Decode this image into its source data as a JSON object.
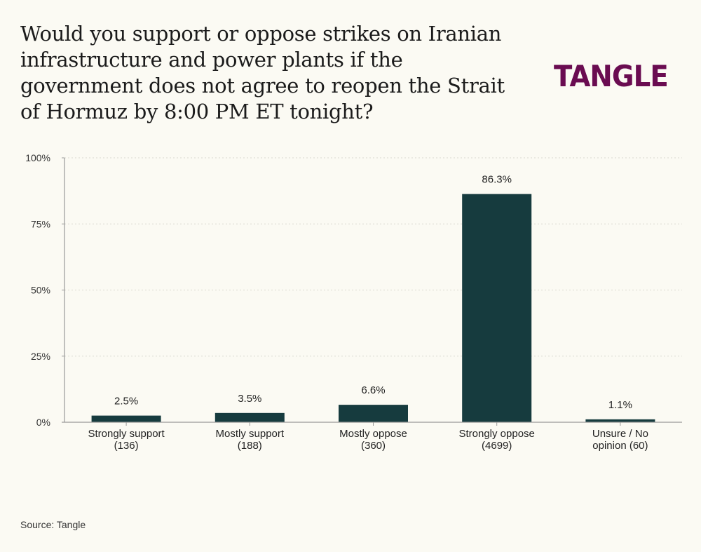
{
  "chart_data": {
    "type": "bar",
    "title": "Would you support or oppose strikes on Iranian infrastructure and power plants if the government does not agree to reopen the Strait of Hormuz by 8:00 PM ET tonight?",
    "categories": [
      [
        "Strongly support",
        "(136)"
      ],
      [
        "Mostly support",
        "(188)"
      ],
      [
        "Mostly oppose",
        "(360)"
      ],
      [
        "Strongly oppose",
        "(4699)"
      ],
      [
        "Unsure / No",
        "opinion (60)"
      ]
    ],
    "values": [
      2.5,
      3.5,
      6.6,
      86.3,
      1.1
    ],
    "value_labels": [
      "2.5%",
      "3.5%",
      "6.6%",
      "86.3%",
      "1.1%"
    ],
    "yticks": [
      0,
      25,
      50,
      75,
      100
    ],
    "ytick_labels": [
      "0%",
      "25%",
      "50%",
      "75%",
      "100%"
    ],
    "ylim": [
      0,
      100
    ],
    "xlabel": "",
    "ylabel": "",
    "grid": true,
    "bar_color": "#163b3e"
  },
  "brand": {
    "logo": "TANGLE",
    "logo_color": "#6a0c51"
  },
  "source": "Source: Tangle"
}
